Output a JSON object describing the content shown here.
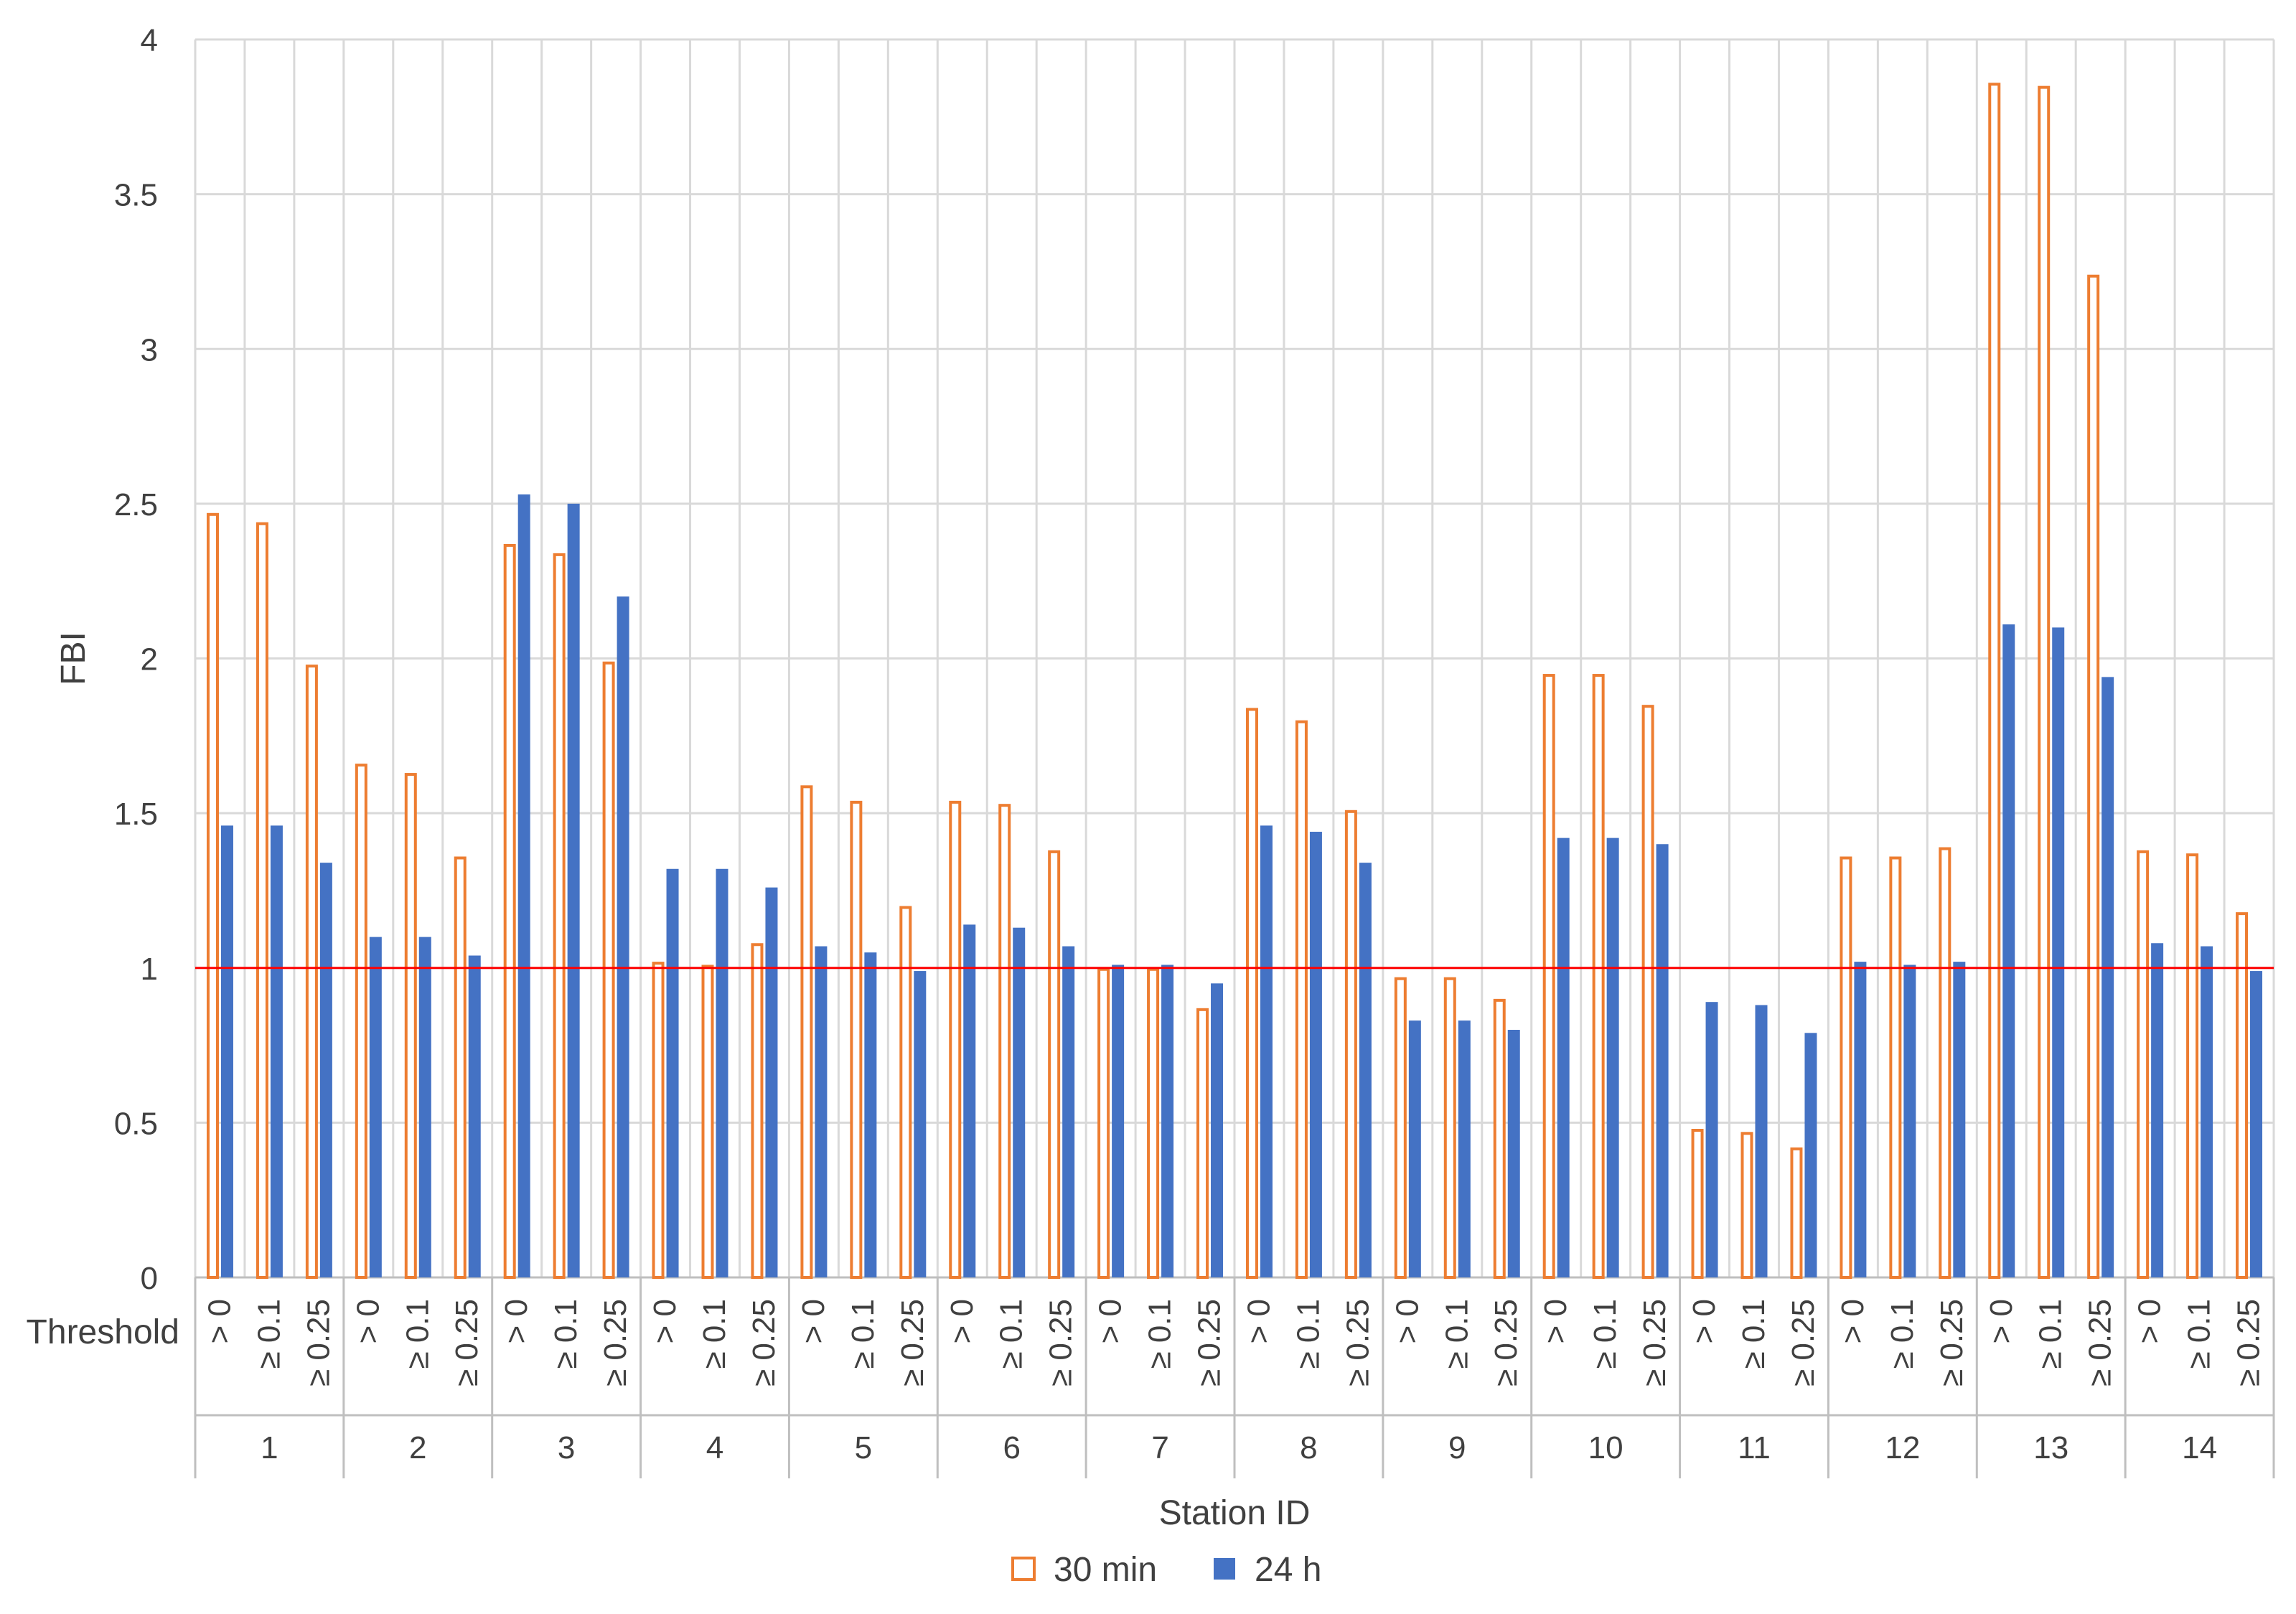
{
  "chart_data": {
    "type": "bar",
    "xlabel": "Station ID",
    "ylabel": "FBI",
    "threshold_label": "Threshold",
    "ylim": [
      0,
      4
    ],
    "yticks": [
      "0",
      "0.5",
      "1",
      "1.5",
      "2",
      "2.5",
      "3",
      "3.5",
      "4"
    ],
    "stations": [
      "1",
      "2",
      "3",
      "4",
      "5",
      "6",
      "7",
      "8",
      "9",
      "10",
      "11",
      "12",
      "13",
      "14"
    ],
    "thresholds": [
      "> 0",
      "≥ 0.1",
      "≥ 0.25"
    ],
    "reference_line": {
      "value": 1,
      "color": "#ff0000"
    },
    "grid": true,
    "legend_position": "bottom",
    "series": [
      {
        "name": "30 min",
        "style": "outline",
        "color": "#ed7d31",
        "values": [
          [
            2.47,
            2.44,
            1.98
          ],
          [
            1.66,
            1.63,
            1.36
          ],
          [
            2.37,
            2.34,
            1.99
          ],
          [
            1.02,
            1.01,
            1.08
          ],
          [
            1.59,
            1.54,
            1.2
          ],
          [
            1.54,
            1.53,
            1.38
          ],
          [
            1.0,
            1.0,
            0.87
          ],
          [
            1.84,
            1.8,
            1.51
          ],
          [
            0.97,
            0.97,
            0.9
          ],
          [
            1.95,
            1.95,
            1.85
          ],
          [
            0.48,
            0.47,
            0.42
          ],
          [
            1.36,
            1.36,
            1.39
          ],
          [
            3.86,
            3.85,
            3.24
          ],
          [
            1.38,
            1.37,
            1.18
          ]
        ]
      },
      {
        "name": "24 h",
        "style": "solid",
        "color": "#4472c4",
        "values": [
          [
            1.46,
            1.46,
            1.34
          ],
          [
            1.1,
            1.1,
            1.04
          ],
          [
            2.53,
            2.5,
            2.2
          ],
          [
            1.32,
            1.32,
            1.26
          ],
          [
            1.07,
            1.05,
            0.99
          ],
          [
            1.14,
            1.13,
            1.07
          ],
          [
            1.01,
            1.01,
            0.95
          ],
          [
            1.46,
            1.44,
            1.34
          ],
          [
            0.83,
            0.83,
            0.8
          ],
          [
            1.42,
            1.42,
            1.4
          ],
          [
            0.89,
            0.88,
            0.79
          ],
          [
            1.02,
            1.01,
            1.02
          ],
          [
            2.11,
            2.1,
            1.94
          ],
          [
            1.08,
            1.07,
            0.99
          ]
        ]
      }
    ]
  }
}
